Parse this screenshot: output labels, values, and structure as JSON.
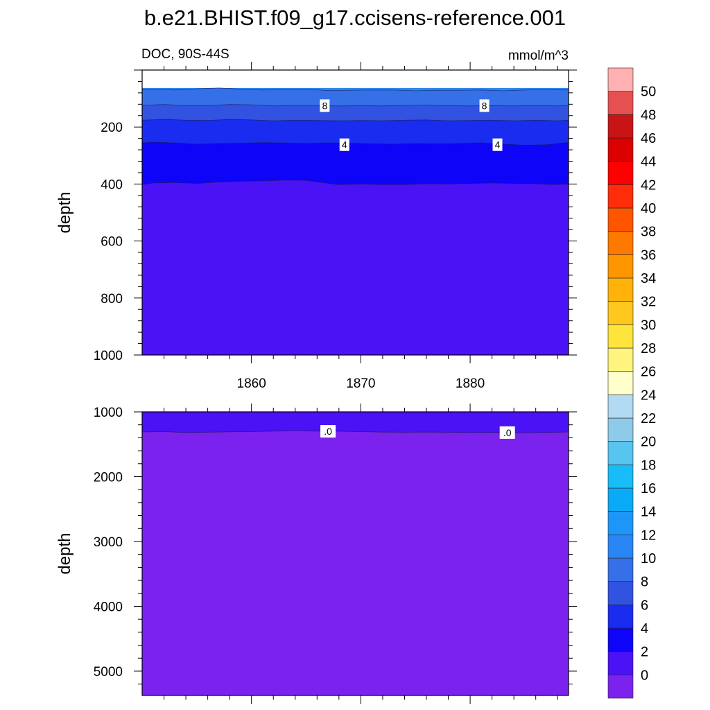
{
  "title": "b.e21.BHIST.f09_g17.ccisens-reference.001",
  "top_panel": {
    "left_label": "DOC, 90S-44S",
    "right_label": "mmol/m^3"
  },
  "colors": {
    "level_fills": [
      "#7b22ef",
      "#4a12f5",
      "#0e04f8",
      "#1a2cef",
      "#3252e0",
      "#3670e8",
      "#2a86f5"
    ]
  },
  "chart_data": [
    {
      "type": "heatmap",
      "subtype": "filled-contour",
      "panel": "upper",
      "x_ticks": [
        1860,
        1870,
        1880
      ],
      "xlim": [
        1850,
        1889
      ],
      "ylim": [
        0,
        1000
      ],
      "y_inverted": true,
      "y_ticks": [
        200,
        400,
        600,
        800,
        1000
      ],
      "ylabel": "depth",
      "contour_labels": [
        {
          "text": "8",
          "x": 1866.7,
          "y": 125
        },
        {
          "text": "8",
          "x": 1881.3,
          "y": 125
        },
        {
          "text": "4",
          "x": 1868.5,
          "y": 262
        },
        {
          "text": "4",
          "x": 1882.5,
          "y": 262
        }
      ],
      "bands": [
        {
          "upper_value": 10,
          "color": "#2a86f5",
          "boundary": [
            [
              1850,
              63
            ],
            [
              1889,
              63
            ]
          ]
        },
        {
          "upper_value": 8,
          "color": "#3670e8",
          "boundary": [
            [
              1850,
              68
            ],
            [
              1851.5,
              67
            ],
            [
              1853,
              70
            ],
            [
              1855,
              66
            ],
            [
              1857,
              63
            ],
            [
              1859,
              67
            ],
            [
              1861,
              70
            ],
            [
              1863,
              68
            ],
            [
              1865,
              67
            ],
            [
              1867,
              72
            ],
            [
              1869,
              71
            ],
            [
              1871,
              70
            ],
            [
              1873,
              70
            ],
            [
              1875,
              73
            ],
            [
              1877,
              71
            ],
            [
              1879,
              71
            ],
            [
              1881,
              70
            ],
            [
              1883,
              73
            ],
            [
              1885,
              70
            ],
            [
              1887,
              68
            ],
            [
              1889,
              70
            ]
          ]
        },
        {
          "upper_value": 6,
          "color": "#3252e0",
          "boundary": [
            [
              1850,
              124
            ],
            [
              1852,
              121
            ],
            [
              1854,
              125
            ],
            [
              1856,
              125
            ],
            [
              1858,
              121
            ],
            [
              1860,
              122
            ],
            [
              1862,
              126
            ],
            [
              1864,
              124
            ],
            [
              1866,
              124
            ],
            [
              1868,
              126
            ],
            [
              1870,
              125
            ],
            [
              1872,
              126
            ],
            [
              1874,
              124
            ],
            [
              1876,
              123
            ],
            [
              1878,
              125
            ],
            [
              1880,
              126
            ],
            [
              1882,
              125
            ],
            [
              1884,
              126
            ],
            [
              1886,
              124
            ],
            [
              1888,
              126
            ],
            [
              1889,
              124
            ]
          ]
        },
        {
          "upper_value": 4,
          "color": "#1a2cef",
          "boundary": [
            [
              1850,
              176
            ],
            [
              1852,
              173
            ],
            [
              1854,
              176
            ],
            [
              1856,
              177
            ],
            [
              1858,
              173
            ],
            [
              1860,
              175
            ],
            [
              1862,
              178
            ],
            [
              1864,
              176
            ],
            [
              1866,
              177
            ],
            [
              1868,
              178
            ],
            [
              1870,
              177
            ],
            [
              1872,
              178
            ],
            [
              1874,
              176
            ],
            [
              1876,
              175
            ],
            [
              1878,
              178
            ],
            [
              1880,
              177
            ],
            [
              1882,
              176
            ],
            [
              1884,
              178
            ],
            [
              1886,
              176
            ],
            [
              1888,
              178
            ],
            [
              1889,
              176
            ]
          ]
        },
        {
          "upper_value": 2,
          "color": "#0e04f8",
          "boundary": [
            [
              1850,
              256
            ],
            [
              1851,
              253
            ],
            [
              1853,
              256
            ],
            [
              1855,
              260
            ],
            [
              1857,
              258
            ],
            [
              1859,
              257
            ],
            [
              1861,
              255
            ],
            [
              1863,
              256
            ],
            [
              1865,
              258
            ],
            [
              1867,
              256
            ],
            [
              1869,
              257
            ],
            [
              1871,
              259
            ],
            [
              1873,
              260
            ],
            [
              1875,
              258
            ],
            [
              1877,
              259
            ],
            [
              1879,
              258
            ],
            [
              1881,
              256
            ],
            [
              1883,
              260
            ],
            [
              1885,
              264
            ],
            [
              1887,
              262
            ],
            [
              1889,
              254
            ]
          ]
        },
        {
          "upper_value": 0,
          "color": "#4a12f5",
          "boundary": [
            [
              1850,
              402
            ],
            [
              1851,
              396
            ],
            [
              1853,
              395
            ],
            [
              1855,
              398
            ],
            [
              1857,
              393
            ],
            [
              1859,
              390
            ],
            [
              1861,
              389
            ],
            [
              1863,
              386
            ],
            [
              1865,
              387
            ],
            [
              1866.5,
              395
            ],
            [
              1868,
              402
            ],
            [
              1870,
              400
            ],
            [
              1872,
              402
            ],
            [
              1874,
              402
            ],
            [
              1876,
              399
            ],
            [
              1878,
              400
            ],
            [
              1880,
              398
            ],
            [
              1882,
              396
            ],
            [
              1884,
              398
            ],
            [
              1886,
              399
            ],
            [
              1887.5,
              402
            ],
            [
              1889,
              400
            ]
          ]
        }
      ]
    },
    {
      "type": "heatmap",
      "subtype": "filled-contour",
      "panel": "lower",
      "xlim": [
        1850,
        1889
      ],
      "ylim": [
        1000,
        5375
      ],
      "y_inverted": true,
      "y_ticks": [
        1000,
        2000,
        3000,
        4000,
        5000
      ],
      "ylabel": "depth",
      "contour_labels": [
        {
          "text": ".0",
          "x": 1867.0,
          "y": 1300
        },
        {
          "text": ".0",
          "x": 1883.4,
          "y": 1320
        }
      ],
      "bands": [
        {
          "upper_value": 2,
          "color": "#4a12f5",
          "boundary": [
            [
              1850,
              1000
            ],
            [
              1889,
              1000
            ]
          ]
        },
        {
          "upper_value": 0,
          "color": "#7b22ef",
          "boundary": [
            [
              1850,
              1310
            ],
            [
              1852,
              1305
            ],
            [
              1854,
              1320
            ],
            [
              1856,
              1315
            ],
            [
              1858,
              1308
            ],
            [
              1860,
              1305
            ],
            [
              1862,
              1298
            ],
            [
              1864,
              1293
            ],
            [
              1866,
              1298
            ],
            [
              1868,
              1300
            ],
            [
              1870,
              1305
            ],
            [
              1872,
              1312
            ],
            [
              1874,
              1315
            ],
            [
              1876,
              1312
            ],
            [
              1878,
              1315
            ],
            [
              1880,
              1320
            ],
            [
              1882,
              1318
            ],
            [
              1884,
              1322
            ],
            [
              1886,
              1320
            ],
            [
              1888,
              1315
            ],
            [
              1889,
              1310
            ]
          ]
        }
      ]
    }
  ],
  "colorbar": {
    "labels": [
      "0",
      "2",
      "4",
      "6",
      "8",
      "10",
      "12",
      "14",
      "16",
      "18",
      "20",
      "22",
      "24",
      "26",
      "28",
      "30",
      "32",
      "34",
      "36",
      "38",
      "40",
      "42",
      "44",
      "46",
      "48",
      "50"
    ],
    "colors": [
      "#7b22ef",
      "#4a12f5",
      "#0e04f8",
      "#1a2cef",
      "#3252e0",
      "#3670e8",
      "#2a86f5",
      "#1e96f8",
      "#0aaaf8",
      "#18bcf8",
      "#58c4f0",
      "#8ecbea",
      "#b2daf2",
      "#ffffcc",
      "#fff47e",
      "#ffe43c",
      "#ffc81e",
      "#ffb30a",
      "#ff9600",
      "#ff7800",
      "#ff5500",
      "#ff2d0a",
      "#ff0000",
      "#dc0000",
      "#c81414",
      "#e65050",
      "#ffb0b0"
    ]
  }
}
